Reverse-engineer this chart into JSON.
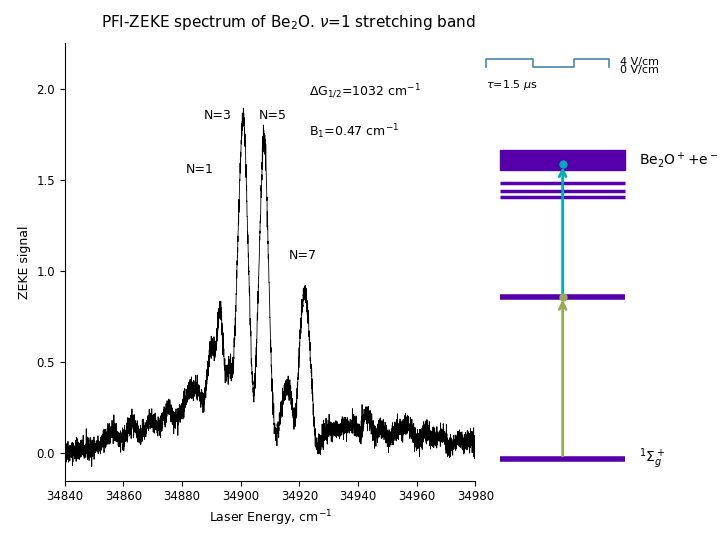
{
  "title": "PFI-ZEKE spectrum of Be$_2$O. $\\nu$=1 stretching band",
  "xlabel": "Laser Energy, cm$^{-1}$",
  "ylabel": "ZEKE signal",
  "xmin": 34840,
  "xmax": 34980,
  "ymin": -0.15,
  "ymax": 2.25,
  "yticks": [
    0.0,
    0.5,
    1.0,
    1.5,
    2.0
  ],
  "annotation_dG": "$\\Delta$G$_{1/2}$=1032 cm$^{-1}$",
  "annotation_B1": "B$_1$=0.47 cm$^{-1}$",
  "label_N3": "N=3",
  "label_N5": "N=5",
  "label_N1": "N=1",
  "label_N7": "N=7",
  "label_tau": "$\\tau$=1.5 $\\mu$s",
  "label_4Vcm": "4 V/cm",
  "label_0Vcm": "0 V/cm",
  "label_Be2O": "Be$_2$O$^+$+e$^-$",
  "label_Sigma": "$^1\\Sigma_g^+$",
  "bg_color": "#ffffff",
  "spectrum_color": "#000000",
  "purple_color": "#5500aa",
  "cyan_color": "#00aabb",
  "green_color": "#99aa55"
}
